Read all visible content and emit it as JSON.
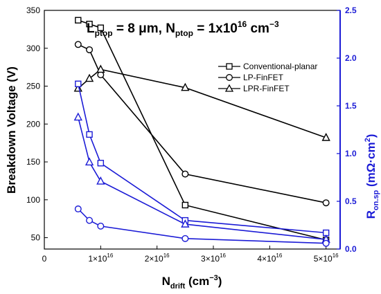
{
  "chart_data": {
    "type": "line",
    "annotation": {
      "l_main": "L",
      "l_sub": "ptop",
      "l_value": " = 8 μm, ",
      "n_main": "N",
      "n_sub": "ptop",
      "n_value": " = 1x10",
      "n_exp": "16",
      "n_unit": " cm",
      "n_unit_exp": "−3"
    },
    "x_axis": {
      "label_main": "N",
      "label_sub": "drift",
      "label_unit": " (cm",
      "label_unit_exp": "−3",
      "label_close": ")",
      "min": 0,
      "max": 5.25e+16,
      "ticks": [
        {
          "value": 0,
          "mant": "0",
          "exp": ""
        },
        {
          "value": 1e+16,
          "mant": "1×10",
          "exp": "16"
        },
        {
          "value": 2e+16,
          "mant": "2×10",
          "exp": "16"
        },
        {
          "value": 3e+16,
          "mant": "3×10",
          "exp": "16"
        },
        {
          "value": 4e+16,
          "mant": "4×10",
          "exp": "16"
        },
        {
          "value": 5e+16,
          "mant": "5×10",
          "exp": "16"
        }
      ]
    },
    "y_axis_left": {
      "label": "Breakdown Voltage (V)",
      "min": 35,
      "max": 350,
      "ticks": [
        50,
        100,
        150,
        200,
        250,
        300,
        350
      ]
    },
    "y_axis_right": {
      "label_main": "R",
      "label_sub": "on.sp",
      "label_unit": " (mΩ·cm",
      "label_unit_exp": "2",
      "label_close": ")",
      "color": "#1b1bd6",
      "min": 0,
      "max": 2.5,
      "ticks": [
        0.0,
        0.5,
        1.0,
        1.5,
        2.0,
        2.5
      ],
      "tick_labels": [
        "0.0",
        "0.5",
        "1.0",
        "1.5",
        "2.0",
        "2.5"
      ]
    },
    "legend": {
      "position": "right",
      "entries": [
        {
          "label": "Conventional-planar",
          "marker": "square"
        },
        {
          "label": "LP-FinFET",
          "marker": "circle"
        },
        {
          "label": "LPR-FinFET",
          "marker": "triangle"
        }
      ]
    },
    "series": [
      {
        "axis": "left",
        "marker": "square",
        "color": "#000000",
        "x": [
          6000000000000000.0,
          8000000000000000.0,
          1e+16,
          2.5e+16,
          5e+16
        ],
        "values": [
          337,
          332,
          327,
          93,
          47
        ]
      },
      {
        "axis": "left",
        "marker": "circle",
        "color": "#000000",
        "x": [
          6000000000000000.0,
          8000000000000000.0,
          1e+16,
          2.5e+16,
          5e+16
        ],
        "values": [
          305,
          298,
          265,
          134,
          96
        ]
      },
      {
        "axis": "left",
        "marker": "triangle",
        "color": "#000000",
        "x": [
          6000000000000000.0,
          8000000000000000.0,
          1e+16,
          2.5e+16,
          5e+16
        ],
        "values": [
          247,
          260,
          272,
          248,
          182
        ]
      },
      {
        "axis": "right",
        "marker": "square",
        "color": "#1b1bd6",
        "x": [
          6000000000000000.0,
          8000000000000000.0,
          1e+16,
          2.5e+16,
          5e+16
        ],
        "values": [
          1.73,
          1.2,
          0.9,
          0.3,
          0.17
        ]
      },
      {
        "axis": "right",
        "marker": "triangle",
        "color": "#1b1bd6",
        "x": [
          6000000000000000.0,
          8000000000000000.0,
          1e+16,
          2.5e+16,
          5e+16
        ],
        "values": [
          1.38,
          0.91,
          0.71,
          0.26,
          0.1
        ]
      },
      {
        "axis": "right",
        "marker": "circle",
        "color": "#1b1bd6",
        "x": [
          6000000000000000.0,
          8000000000000000.0,
          1e+16,
          2.5e+16,
          5e+16
        ],
        "values": [
          0.42,
          0.3,
          0.24,
          0.11,
          0.06
        ]
      }
    ]
  }
}
